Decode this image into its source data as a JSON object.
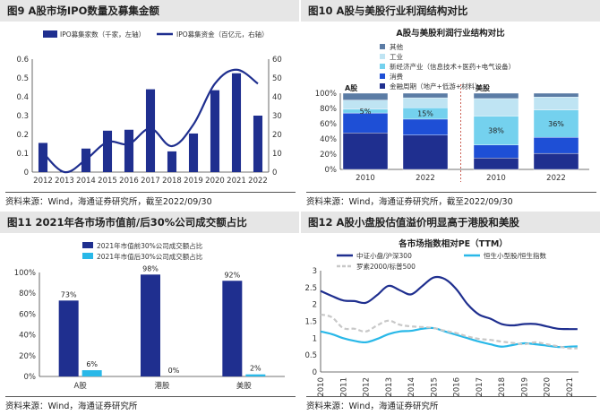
{
  "panels": {
    "p9": {
      "title": "图9 A股市场IPO数量及募集金额",
      "source": "资料来源：Wind，海通证券研究所，截至2022/09/30"
    },
    "p10": {
      "title": "图10 A股与美股行业利润结构对比",
      "source": "资料来源：Wind，海通证券研究所，截至2022/09/30"
    },
    "p11": {
      "title": "图11 2021年各市场市值前/后30%公司成交额占比",
      "source": "资料来源：Wind，海通证券研究所"
    },
    "p12": {
      "title": "图12 A股小盘股估值溢价明显高于港股和美股",
      "source": "资料来源：Wind，海通证券研究所"
    }
  },
  "chart_data": [
    {
      "id": "ipo",
      "type": "bar",
      "categories": [
        "2012",
        "2013",
        "2014",
        "2015",
        "2016",
        "2017",
        "2018",
        "2019",
        "2020",
        "2021",
        "2022"
      ],
      "series": [
        {
          "name": "IPO募集家数（千家，左轴）",
          "type": "bar",
          "axis": "left",
          "color": "#1f2f8f",
          "values": [
            0.155,
            0.002,
            0.125,
            0.22,
            0.225,
            0.44,
            0.11,
            0.205,
            0.435,
            0.525,
            0.3
          ]
        },
        {
          "name": "IPO募集资金（百亿元，右轴）",
          "type": "line",
          "axis": "right",
          "color": "#1f2f8f",
          "values": [
            10.3,
            0.0,
            6.7,
            15.9,
            15.0,
            23.1,
            13.8,
            25.3,
            47.0,
            54.4,
            47.0
          ]
        }
      ],
      "yleft": {
        "min": 0,
        "max": 0.6,
        "ticks": [
          "0",
          "0.1",
          "0.2",
          "0.3",
          "0.4",
          "0.5",
          "0.6"
        ]
      },
      "yright": {
        "min": 0,
        "max": 60,
        "ticks": [
          "0",
          "10",
          "20",
          "30",
          "40",
          "50",
          "60"
        ]
      },
      "grid": false,
      "legend": "top"
    },
    {
      "id": "profit",
      "type": "bar",
      "title": "A股与美股利润行业结构对比",
      "stacked": true,
      "categories": [
        "2010",
        "2022",
        "2010",
        "2022"
      ],
      "groups": [
        {
          "label": "A股",
          "from": 0,
          "to": 1
        },
        {
          "label": "美股",
          "from": 2,
          "to": 3
        }
      ],
      "series": [
        {
          "name": "金融周期（地产+低游+材料）",
          "color": "#1f2f8f",
          "values": [
            48,
            45,
            15,
            21
          ]
        },
        {
          "name": "消费",
          "color": "#1e4fd6",
          "values": [
            26,
            21,
            17,
            21
          ]
        },
        {
          "name": "新经济产业（信息技术+医药+电气设备）",
          "color": "#74d1ee",
          "values": [
            5,
            15,
            38,
            36
          ]
        },
        {
          "name": "工业",
          "color": "#bfe4f3",
          "values": [
            12,
            13,
            23,
            17
          ]
        },
        {
          "name": "其他",
          "color": "#5b7ca5",
          "values": [
            9,
            6,
            7,
            5
          ]
        }
      ],
      "bar_labels": [
        "5%",
        "15%",
        "38%",
        "36%"
      ],
      "ylim": [
        0,
        100
      ],
      "yticks": [
        "0%",
        "20%",
        "40%",
        "60%",
        "80%",
        "100%"
      ],
      "legend": "top-left"
    },
    {
      "id": "turnover",
      "type": "bar",
      "categories": [
        "A股",
        "港股",
        "美股"
      ],
      "series": [
        {
          "name": "2021年市值前30%公司成交额占比",
          "color": "#1f2f8f",
          "values": [
            73,
            98,
            92
          ],
          "labels": [
            "73%",
            "98%",
            "92%"
          ]
        },
        {
          "name": "2021年市值后30%公司成交额占比",
          "color": "#29b8e8",
          "values": [
            6,
            0,
            2
          ],
          "labels": [
            "6%",
            "0%",
            "2%"
          ]
        }
      ],
      "ylim": [
        0,
        100
      ],
      "yticks": [
        "0%",
        "20%",
        "40%",
        "60%",
        "80%",
        "100%"
      ],
      "legend": "top-left"
    },
    {
      "id": "pe",
      "type": "line",
      "title": "各市场指数相对PE（TTM）",
      "x": [
        "2010",
        "2011",
        "2012",
        "2013",
        "2014",
        "2015",
        "2016",
        "2017",
        "2018",
        "2019",
        "2020",
        "2021"
      ],
      "series": [
        {
          "name": "中证小盘/沪深300",
          "color": "#1f2f8f",
          "style": "solid",
          "points": [
            [
              2010,
              2.4
            ],
            [
              2010.5,
              2.25
            ],
            [
              2011,
              2.12
            ],
            [
              2011.5,
              2.1
            ],
            [
              2012,
              2.05
            ],
            [
              2012.5,
              2.28
            ],
            [
              2013,
              2.55
            ],
            [
              2013.5,
              2.42
            ],
            [
              2014,
              2.3
            ],
            [
              2014.5,
              2.55
            ],
            [
              2015,
              2.8
            ],
            [
              2015.5,
              2.75
            ],
            [
              2016,
              2.45
            ],
            [
              2016.5,
              2.0
            ],
            [
              2017,
              1.7
            ],
            [
              2017.5,
              1.58
            ],
            [
              2018,
              1.42
            ],
            [
              2018.5,
              1.38
            ],
            [
              2019,
              1.42
            ],
            [
              2019.5,
              1.42
            ],
            [
              2020,
              1.35
            ],
            [
              2020.5,
              1.28
            ],
            [
              2021,
              1.27
            ],
            [
              2021.35,
              1.27
            ]
          ]
        },
        {
          "name": "恒生小型股/恒生指数",
          "color": "#29b8e8",
          "style": "solid",
          "points": [
            [
              2010,
              1.2
            ],
            [
              2010.5,
              1.12
            ],
            [
              2011,
              1.0
            ],
            [
              2011.5,
              0.92
            ],
            [
              2012,
              0.88
            ],
            [
              2012.5,
              0.98
            ],
            [
              2013,
              1.12
            ],
            [
              2013.5,
              1.2
            ],
            [
              2014,
              1.22
            ],
            [
              2014.5,
              1.28
            ],
            [
              2015,
              1.3
            ],
            [
              2015.5,
              1.2
            ],
            [
              2016,
              1.1
            ],
            [
              2016.5,
              1.0
            ],
            [
              2017,
              0.9
            ],
            [
              2017.5,
              0.82
            ],
            [
              2018,
              0.75
            ],
            [
              2018.5,
              0.8
            ],
            [
              2019,
              0.85
            ],
            [
              2019.5,
              0.82
            ],
            [
              2020,
              0.78
            ],
            [
              2020.5,
              0.74
            ],
            [
              2021,
              0.75
            ],
            [
              2021.35,
              0.76
            ]
          ]
        },
        {
          "name": "罗素2000/标普500",
          "color": "#c8c8c8",
          "style": "dashed",
          "points": [
            [
              2010,
              1.7
            ],
            [
              2010.5,
              1.62
            ],
            [
              2011,
              1.3
            ],
            [
              2011.5,
              1.28
            ],
            [
              2012,
              1.2
            ],
            [
              2012.5,
              1.38
            ],
            [
              2013,
              1.52
            ],
            [
              2013.5,
              1.4
            ],
            [
              2014,
              1.35
            ],
            [
              2014.5,
              1.33
            ],
            [
              2015,
              1.3
            ],
            [
              2015.5,
              1.22
            ],
            [
              2016,
              1.15
            ],
            [
              2016.5,
              1.05
            ],
            [
              2017,
              0.98
            ],
            [
              2017.5,
              0.95
            ],
            [
              2018,
              0.9
            ],
            [
              2018.5,
              0.86
            ],
            [
              2019,
              0.82
            ],
            [
              2019.5,
              0.88
            ],
            [
              2020,
              0.82
            ],
            [
              2020.5,
              0.76
            ],
            [
              2021,
              0.7
            ],
            [
              2021.35,
              0.7
            ]
          ]
        }
      ],
      "ylim": [
        0,
        3
      ],
      "yticks": [
        "0",
        "0.5",
        "1",
        "1.5",
        "2",
        "2.5",
        "3"
      ],
      "legend": "top"
    }
  ]
}
